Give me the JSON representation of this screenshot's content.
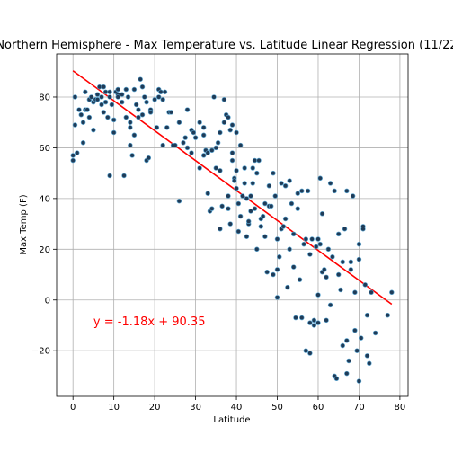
{
  "chart_data": {
    "type": "scatter",
    "title": "Northern Hemisphere - Max Temperature vs. Latitude Linear Regression (11/22",
    "xlabel": "Latitude",
    "ylabel": "Max Temp (F)",
    "xlim": [
      -4,
      82
    ],
    "ylim": [
      -38,
      97
    ],
    "xticks": [
      0,
      10,
      20,
      30,
      40,
      50,
      60,
      70,
      80
    ],
    "yticks": [
      -20,
      0,
      20,
      40,
      60,
      80
    ],
    "grid": true,
    "point_color": "#1f3b57",
    "point_edge": "#5fa8d3",
    "line_color": "#ff0000",
    "regression": {
      "slope": -1.18,
      "intercept": 90.35,
      "x_range": [
        0,
        78
      ]
    },
    "annotation": {
      "text": "y = -1.18x + 90.35",
      "x": 5,
      "y": -10,
      "color": "#ff0000"
    },
    "points": [
      [
        0,
        55
      ],
      [
        0,
        57
      ],
      [
        0.5,
        69
      ],
      [
        0.5,
        80
      ],
      [
        1,
        58
      ],
      [
        1.5,
        75
      ],
      [
        2,
        73
      ],
      [
        2.5,
        70
      ],
      [
        2.5,
        62
      ],
      [
        3,
        82
      ],
      [
        3,
        75
      ],
      [
        3.5,
        75
      ],
      [
        4,
        72
      ],
      [
        4,
        79
      ],
      [
        4.5,
        80
      ],
      [
        5,
        67
      ],
      [
        5,
        78
      ],
      [
        5.5,
        79
      ],
      [
        6,
        81
      ],
      [
        6,
        79
      ],
      [
        6.5,
        84
      ],
      [
        7,
        77
      ],
      [
        7,
        80
      ],
      [
        7.5,
        74
      ],
      [
        7.5,
        84
      ],
      [
        8,
        78
      ],
      [
        8,
        82
      ],
      [
        8.5,
        72
      ],
      [
        9,
        82
      ],
      [
        9,
        80
      ],
      [
        9,
        49
      ],
      [
        9.5,
        77
      ],
      [
        10,
        71
      ],
      [
        10,
        66
      ],
      [
        10.5,
        82
      ],
      [
        11,
        83
      ],
      [
        11,
        81
      ],
      [
        11,
        80
      ],
      [
        12,
        81
      ],
      [
        12,
        78
      ],
      [
        12.5,
        49
      ],
      [
        13,
        83
      ],
      [
        13,
        72
      ],
      [
        13.5,
        80
      ],
      [
        14,
        70
      ],
      [
        14,
        68
      ],
      [
        14,
        61
      ],
      [
        14.5,
        57
      ],
      [
        15,
        83
      ],
      [
        15,
        65
      ],
      [
        15.5,
        77
      ],
      [
        16,
        75
      ],
      [
        16,
        72
      ],
      [
        16.5,
        87
      ],
      [
        17,
        84
      ],
      [
        17,
        73
      ],
      [
        17.5,
        80
      ],
      [
        18,
        55
      ],
      [
        18,
        78
      ],
      [
        18.5,
        56
      ],
      [
        19,
        75
      ],
      [
        19,
        74
      ],
      [
        20,
        79
      ],
      [
        20.5,
        68
      ],
      [
        21,
        80
      ],
      [
        21,
        83
      ],
      [
        21.5,
        82
      ],
      [
        22,
        61
      ],
      [
        22,
        79
      ],
      [
        22.5,
        82
      ],
      [
        23,
        68
      ],
      [
        23.5,
        74
      ],
      [
        24,
        74
      ],
      [
        24.5,
        61
      ],
      [
        25,
        61
      ],
      [
        26,
        70
      ],
      [
        26,
        39
      ],
      [
        27,
        62
      ],
      [
        27.5,
        64
      ],
      [
        28,
        60
      ],
      [
        28,
        75
      ],
      [
        29,
        58
      ],
      [
        29,
        67
      ],
      [
        29.5,
        66
      ],
      [
        30,
        64
      ],
      [
        31,
        70
      ],
      [
        31,
        52
      ],
      [
        32,
        65
      ],
      [
        32,
        57
      ],
      [
        32,
        68
      ],
      [
        32.5,
        59
      ],
      [
        33,
        58
      ],
      [
        33,
        42
      ],
      [
        33.5,
        35
      ],
      [
        34,
        36
      ],
      [
        34,
        59
      ],
      [
        34.5,
        80
      ],
      [
        35,
        52
      ],
      [
        35,
        60
      ],
      [
        35.5,
        62
      ],
      [
        36,
        66
      ],
      [
        36,
        51
      ],
      [
        36,
        28
      ],
      [
        36.5,
        37
      ],
      [
        37,
        70
      ],
      [
        37,
        79
      ],
      [
        37.5,
        73
      ],
      [
        38,
        72
      ],
      [
        38,
        41
      ],
      [
        38,
        36
      ],
      [
        38.5,
        67
      ],
      [
        38.5,
        30
      ],
      [
        39,
        55
      ],
      [
        39,
        69
      ],
      [
        39,
        58
      ],
      [
        39.5,
        48
      ],
      [
        39.5,
        47
      ],
      [
        40,
        66
      ],
      [
        40,
        51
      ],
      [
        40,
        44
      ],
      [
        40.5,
        27
      ],
      [
        40.5,
        38
      ],
      [
        41,
        33
      ],
      [
        41,
        61
      ],
      [
        41.5,
        41
      ],
      [
        42,
        46
      ],
      [
        42,
        52
      ],
      [
        42.5,
        25
      ],
      [
        42.5,
        40
      ],
      [
        43,
        30
      ],
      [
        43,
        31
      ],
      [
        43.5,
        35
      ],
      [
        43.5,
        41
      ],
      [
        44,
        46
      ],
      [
        44,
        52
      ],
      [
        44.5,
        55
      ],
      [
        44.5,
        36
      ],
      [
        45,
        20
      ],
      [
        45,
        50
      ],
      [
        45.5,
        55
      ],
      [
        46,
        32
      ],
      [
        46,
        29
      ],
      [
        46.5,
        33
      ],
      [
        47,
        38
      ],
      [
        47,
        25
      ],
      [
        47.5,
        11
      ],
      [
        48,
        45
      ],
      [
        48,
        37
      ],
      [
        48.5,
        37
      ],
      [
        49,
        10
      ],
      [
        49,
        50
      ],
      [
        49.5,
        41
      ],
      [
        50,
        1
      ],
      [
        50,
        12
      ],
      [
        50,
        24
      ],
      [
        50.5,
        17
      ],
      [
        51,
        28
      ],
      [
        51,
        46
      ],
      [
        51.5,
        29
      ],
      [
        52,
        32
      ],
      [
        52,
        45
      ],
      [
        52.5,
        5
      ],
      [
        53,
        20
      ],
      [
        53,
        47
      ],
      [
        53.5,
        38
      ],
      [
        54,
        13
      ],
      [
        54,
        26
      ],
      [
        54.5,
        -7
      ],
      [
        55,
        42
      ],
      [
        55,
        36
      ],
      [
        55.5,
        8
      ],
      [
        56,
        43
      ],
      [
        56,
        -7
      ],
      [
        56.5,
        22
      ],
      [
        57,
        24
      ],
      [
        57,
        -20
      ],
      [
        57.5,
        43
      ],
      [
        58,
        18
      ],
      [
        58,
        -21
      ],
      [
        58.5,
        24
      ],
      [
        59,
        -8
      ],
      [
        59,
        -10
      ],
      [
        59.5,
        21
      ],
      [
        60,
        24
      ],
      [
        60,
        2
      ],
      [
        60.5,
        48
      ],
      [
        60.5,
        22
      ],
      [
        61,
        34
      ],
      [
        61,
        11
      ],
      [
        61.5,
        12
      ],
      [
        62,
        9
      ],
      [
        62,
        -8
      ],
      [
        62.5,
        20
      ],
      [
        63,
        46
      ],
      [
        63,
        -2
      ],
      [
        63.5,
        17
      ],
      [
        64,
        43
      ],
      [
        64,
        -30
      ],
      [
        64.5,
        -31
      ],
      [
        65,
        10
      ],
      [
        65,
        26
      ],
      [
        65.5,
        4
      ],
      [
        66,
        15
      ],
      [
        66,
        -18
      ],
      [
        66.5,
        28
      ],
      [
        67,
        -29
      ],
      [
        67,
        43
      ],
      [
        67.5,
        -24
      ],
      [
        68,
        15
      ],
      [
        68,
        12
      ],
      [
        68.5,
        41
      ],
      [
        69,
        3
      ],
      [
        69,
        -12
      ],
      [
        69.5,
        -20
      ],
      [
        70,
        16
      ],
      [
        70,
        22
      ],
      [
        70.5,
        -15
      ],
      [
        71,
        29
      ],
      [
        71,
        28
      ],
      [
        71.5,
        6
      ],
      [
        72,
        -6
      ],
      [
        72,
        -22
      ],
      [
        72.5,
        -25
      ],
      [
        73,
        3
      ],
      [
        74,
        -13
      ],
      [
        77,
        -6
      ],
      [
        78,
        3
      ],
      [
        70,
        -32
      ],
      [
        67,
        -16
      ],
      [
        60,
        -9
      ],
      [
        58,
        -9
      ]
    ]
  }
}
